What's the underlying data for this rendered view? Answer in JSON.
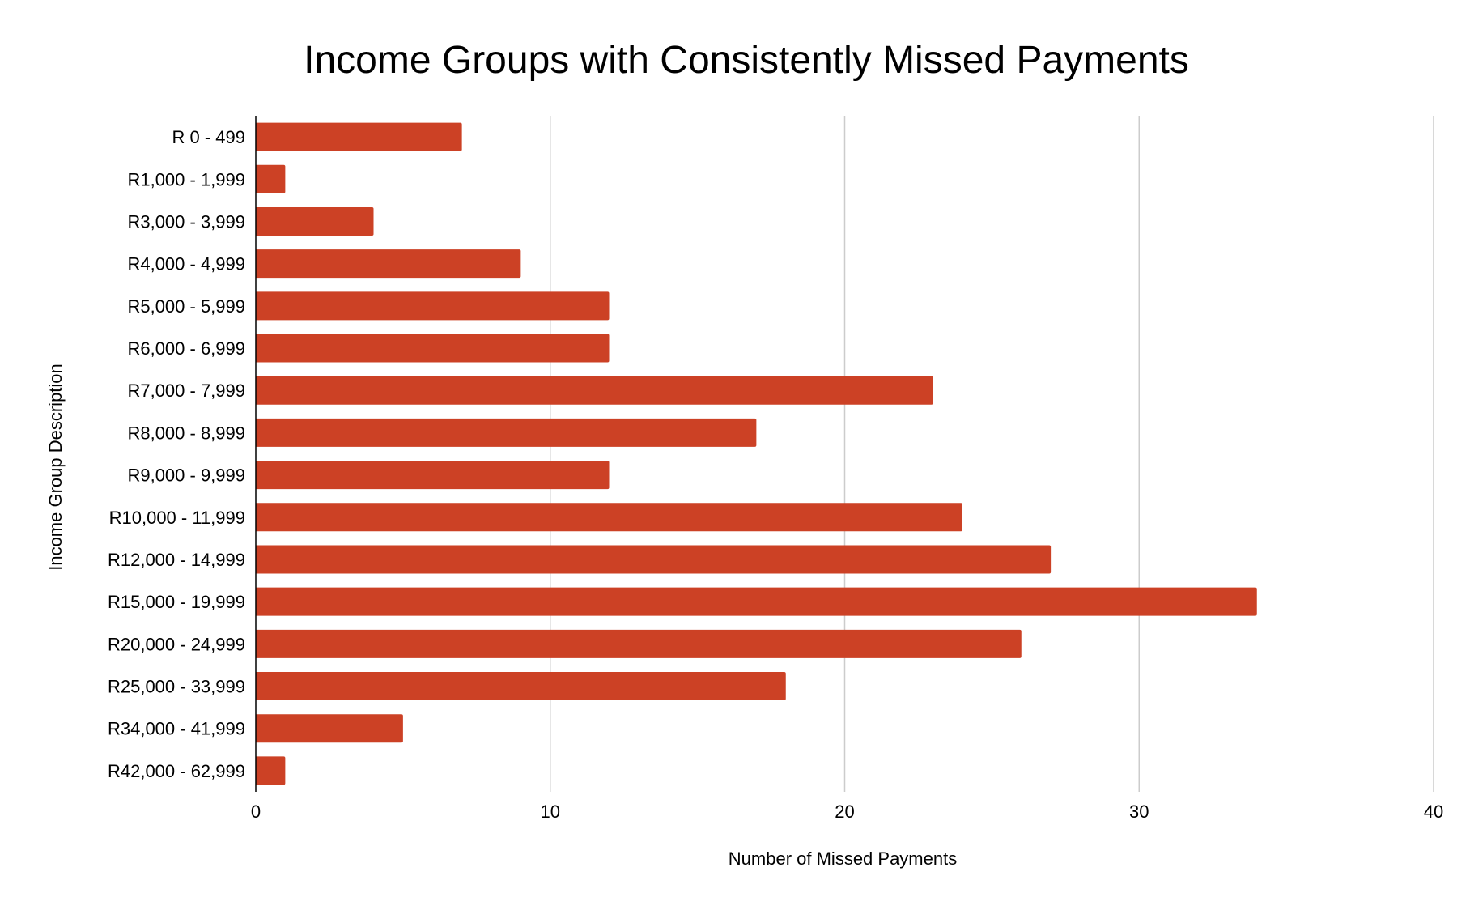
{
  "chart_data": {
    "type": "bar",
    "orientation": "horizontal",
    "title": "Income Groups with Consistently Missed Payments",
    "xlabel": "Number of Missed Payments",
    "ylabel": "Income Group Description",
    "categories": [
      "R 0 - 499",
      "R1,000 - 1,999",
      "R3,000 - 3,999",
      "R4,000 - 4,999",
      "R5,000 - 5,999",
      "R6,000 - 6,999",
      "R7,000 - 7,999",
      "R8,000 - 8,999",
      "R9,000 - 9,999",
      "R10,000 - 11,999",
      "R12,000 - 14,999",
      "R15,000 - 19,999",
      "R20,000 - 24,999",
      "R25,000 - 33,999",
      "R34,000 - 41,999",
      "R42,000 - 62,999"
    ],
    "values": [
      7,
      1,
      4,
      9,
      12,
      12,
      23,
      17,
      12,
      24,
      27,
      34,
      26,
      18,
      5,
      1
    ],
    "xlim": [
      0,
      40
    ],
    "xticks": [
      "0",
      "10",
      "20",
      "30",
      "40"
    ],
    "grid": "vertical",
    "legend": "none",
    "bar_color": "#cc4125",
    "grid_color": "#cccccc",
    "axis_color": "#000000"
  }
}
